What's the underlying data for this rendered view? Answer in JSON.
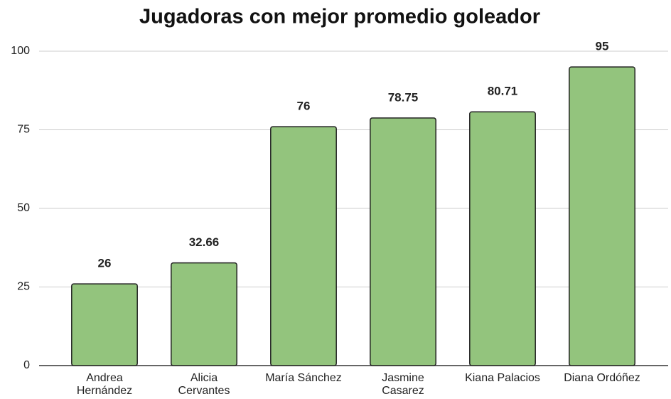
{
  "chart_data": {
    "type": "bar",
    "title": "Jugadoras con mejor promedio goleador",
    "categories": [
      "Andrea Hernández",
      "Alicia Cervantes",
      "María Sánchez",
      "Jasmine Casarez",
      "Kiana Palacios",
      "Diana Ordóñez"
    ],
    "values": [
      26,
      32.66,
      76,
      78.75,
      80.71,
      95
    ],
    "color": "#93c47d",
    "ylim": [
      0,
      100
    ],
    "yticks": [
      0,
      25,
      50,
      75,
      100
    ],
    "grid": true,
    "data_labels": true
  }
}
